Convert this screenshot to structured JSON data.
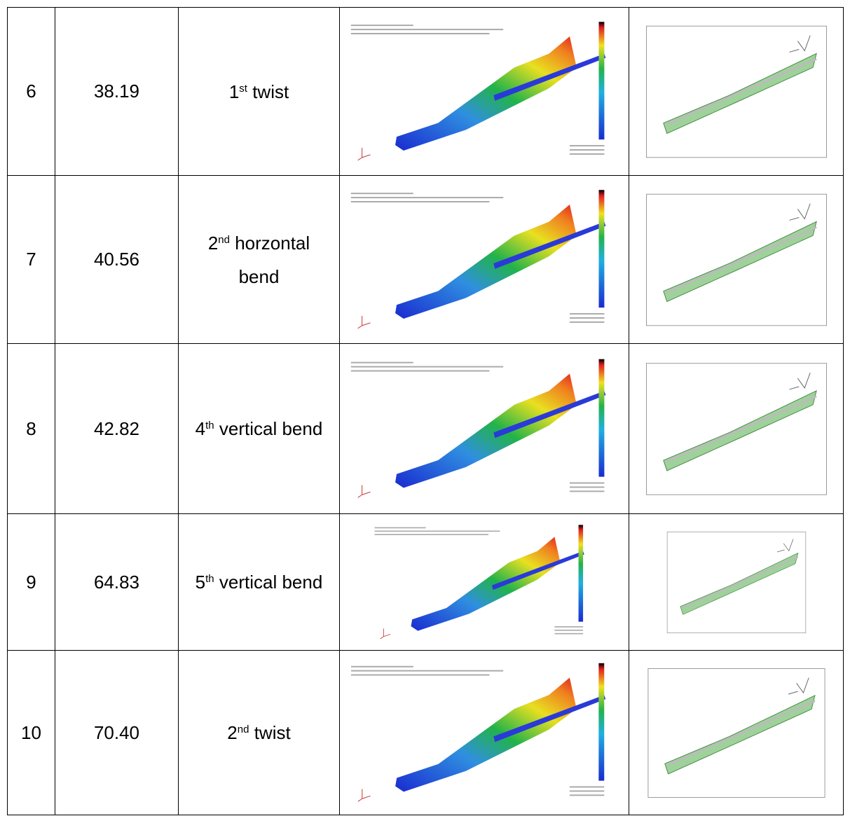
{
  "table": {
    "rows": [
      {
        "mode": "6",
        "frequency": "38.19",
        "shape": {
          "ordinal": "1",
          "suffix": "st",
          "label": "twist"
        }
      },
      {
        "mode": "7",
        "frequency": "40.56",
        "shape": {
          "ordinal": "2",
          "suffix": "nd",
          "label": "horzontal bend"
        }
      },
      {
        "mode": "8",
        "frequency": "42.82",
        "shape": {
          "ordinal": "4",
          "suffix": "th",
          "label": "vertical bend"
        }
      },
      {
        "mode": "9",
        "frequency": "64.83",
        "shape": {
          "ordinal": "5",
          "suffix": "th",
          "label": "vertical bend"
        }
      },
      {
        "mode": "10",
        "frequency": "70.40",
        "shape": {
          "ordinal": "2",
          "suffix": "nd",
          "label": "twist"
        }
      }
    ]
  }
}
